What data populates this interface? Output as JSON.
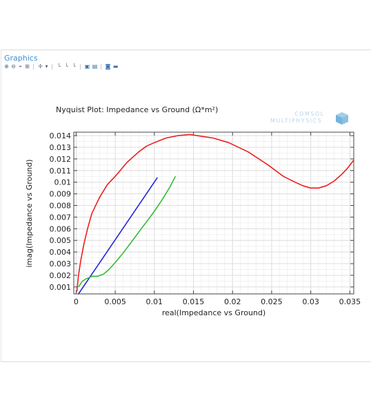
{
  "panel": {
    "title": "Graphics",
    "toolbar_icons": [
      "zoom-in-icon",
      "zoom-out-icon",
      "zoom-box-icon",
      "zoom-extents-icon",
      "axis-icon",
      "x-axis-log-icon",
      "y-axis-log-icon",
      "grid-icon",
      "legend-icon",
      "table-icon",
      "camera-icon",
      "print-icon"
    ]
  },
  "logo": {
    "line1": "COMSOL",
    "line2": "MULTIPHYSICS",
    "cube_color": "#5aa5d6"
  },
  "chart_data": {
    "type": "line",
    "title": "Nyquist Plot: Impedance vs Ground (Ω*m²)",
    "xlabel": "real(Impedance vs Ground)",
    "ylabel": "imag(Impedance vs Ground)",
    "xlim": [
      -0.0003,
      0.0355
    ],
    "ylim": [
      0.0004,
      0.0143
    ],
    "x_ticks": [
      0,
      0.005,
      0.01,
      0.015,
      0.02,
      0.025,
      0.03,
      0.035
    ],
    "x_tick_labels": [
      "0",
      "0.005",
      "0.01",
      "0.015",
      "0.02",
      "0.025",
      "0.03",
      "0.035"
    ],
    "y_ticks": [
      0.001,
      0.002,
      0.003,
      0.004,
      0.005,
      0.006,
      0.007,
      0.008,
      0.009,
      0.01,
      0.011,
      0.012,
      0.013,
      0.014
    ],
    "y_tick_labels": [
      "0.001",
      "0.002",
      "0.003",
      "0.004",
      "0.005",
      "0.006",
      "0.007",
      "0.008",
      "0.009",
      "0.01",
      "0.011",
      "0.012",
      "0.013",
      "0.014"
    ],
    "grid": true,
    "legend": "none",
    "series": [
      {
        "color": "#ee1c1c",
        "x": [
          0.0001,
          0.0003,
          0.0006,
          0.001,
          0.0015,
          0.002,
          0.003,
          0.004,
          0.005,
          0.0065,
          0.008,
          0.009,
          0.01,
          0.0115,
          0.013,
          0.0145,
          0.0155,
          0.0165,
          0.0175,
          0.0195,
          0.022,
          0.0245,
          0.0265,
          0.028,
          0.029,
          0.03,
          0.031,
          0.032,
          0.033,
          0.034,
          0.0347,
          0.0355
        ],
        "y": [
          0.0006,
          0.002,
          0.0033,
          0.0047,
          0.0061,
          0.0073,
          0.0087,
          0.0098,
          0.0105,
          0.0117,
          0.0126,
          0.0131,
          0.0134,
          0.0138,
          0.014,
          0.0141,
          0.014,
          0.0139,
          0.0138,
          0.0134,
          0.0126,
          0.0115,
          0.0105,
          0.01,
          0.0097,
          0.0095,
          0.0095,
          0.0097,
          0.0101,
          0.0107,
          0.0112,
          0.0119
        ]
      },
      {
        "color": "#2222dd",
        "x": [
          0.0003,
          0.0104
        ],
        "y": [
          0.0004,
          0.0104
        ]
      },
      {
        "color": "#33bb33",
        "x": [
          0.0003,
          0.0008,
          0.0013,
          0.002,
          0.0027,
          0.0035,
          0.0042,
          0.005,
          0.006,
          0.007,
          0.008,
          0.009,
          0.01,
          0.011,
          0.012,
          0.0127
        ],
        "y": [
          0.001,
          0.0015,
          0.0017,
          0.0019,
          0.0019,
          0.0021,
          0.0025,
          0.0031,
          0.0039,
          0.0048,
          0.0057,
          0.0066,
          0.0075,
          0.0085,
          0.0096,
          0.0105
        ]
      }
    ]
  }
}
